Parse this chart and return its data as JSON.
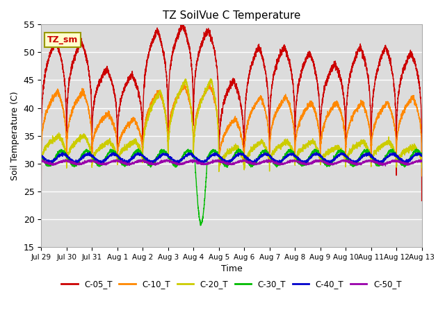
{
  "title": "TZ SoilVue C Temperature",
  "xlabel": "Time",
  "ylabel": "Soil Temperature (C)",
  "ylim": [
    15,
    55
  ],
  "annotation": "TZ_sm",
  "background_color": "#dcdcdc",
  "fig_background": "#ffffff",
  "grid_color": "#ffffff",
  "series_names": [
    "C-05_T",
    "C-10_T",
    "C-20_T",
    "C-30_T",
    "C-40_T",
    "C-50_T"
  ],
  "series_colors": [
    "#cc0000",
    "#ff8800",
    "#cccc00",
    "#00bb00",
    "#0000cc",
    "#9900aa"
  ],
  "xtick_labels": [
    "Jul 29",
    "Jul 30",
    "Jul 31",
    "Aug 1",
    "Aug 2",
    "Aug 3",
    "Aug 4",
    "Aug 5",
    "Aug 6",
    "Aug 7",
    "Aug 8",
    "Aug 9",
    "Aug 10",
    "Aug 11",
    "Aug 12",
    "Aug 13"
  ],
  "ytick_labels": [
    15,
    20,
    25,
    30,
    35,
    40,
    45,
    50,
    55
  ],
  "n_days": 15,
  "points_per_day": 288,
  "c05_base": 30,
  "c05_peak": 22,
  "c05_trough_delta": -8,
  "c10_base": 30,
  "c10_peak": 13,
  "c20_base": 30,
  "c20_peak": 14,
  "c30_base": 31,
  "c30_amp": 1.5,
  "c40_base": 31,
  "c40_amp": 0.6,
  "c50_base": 30.2,
  "c50_amp": 0.3
}
